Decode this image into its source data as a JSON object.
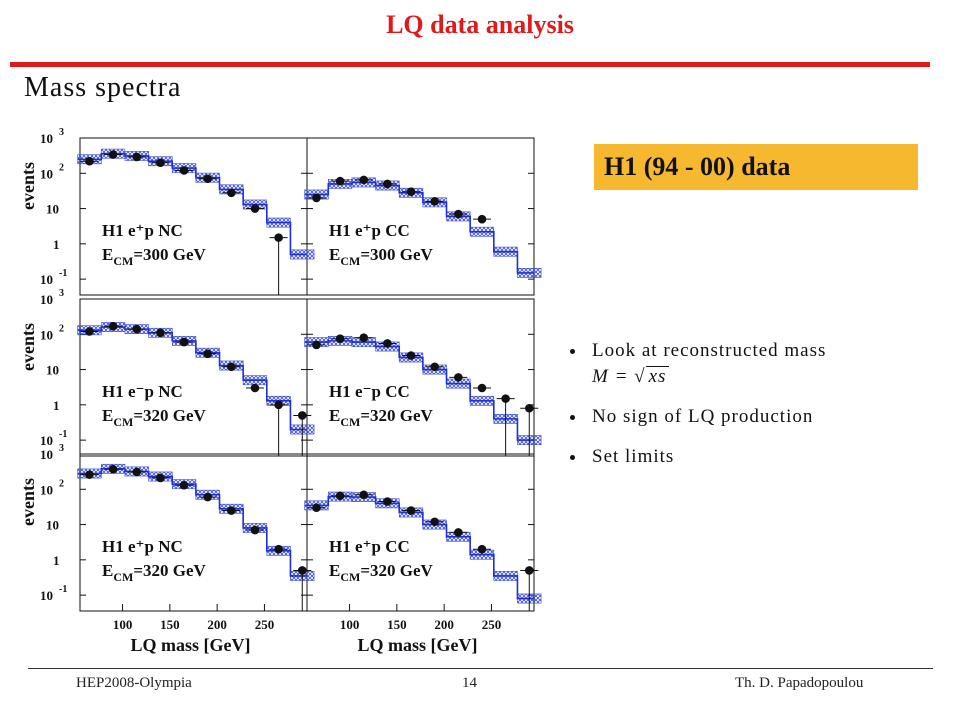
{
  "slide": {
    "title": "LQ data analysis",
    "section_heading": "Mass spectra",
    "data_box_label": "H1 (94 - 00)  data",
    "bullets": [
      "Look at reconstructed mass",
      "No sign of LQ production",
      "Set limits"
    ],
    "formula": {
      "lhs": "M =",
      "radicand": "xs"
    },
    "footer": {
      "left": "HEP2008-Olympia",
      "center": "14",
      "right": "Th. D. Papadopoulou"
    },
    "colors": {
      "title": "#e0191a",
      "box": "#f5b82e",
      "mc_line": "#1e2fd6"
    }
  },
  "chart_data": {
    "type": "histogram",
    "y_axis": {
      "label": "events",
      "scale": "log",
      "ticks": [
        "10^3",
        "10^2",
        "10",
        "1",
        "10^-1"
      ]
    },
    "x_axis": {
      "label": "LQ mass [GeV]",
      "range": [
        55,
        295
      ],
      "ticks": [
        100,
        150,
        200,
        250
      ]
    },
    "panels": [
      {
        "row": 0,
        "col": 0,
        "label": "H1 e⁺p NC",
        "energy": "E_CM=300 GeV",
        "x": [
          65,
          90,
          115,
          140,
          165,
          190,
          215,
          240,
          265,
          290
        ],
        "mc": [
          250,
          360,
          310,
          220,
          140,
          75,
          35,
          13,
          4,
          0.5
        ],
        "data": [
          220,
          340,
          290,
          200,
          120,
          70,
          28,
          10,
          1.5,
          0
        ]
      },
      {
        "row": 0,
        "col": 1,
        "label": "H1 e⁺p CC",
        "energy": "E_CM=300 GeV",
        "x": [
          65,
          90,
          115,
          140,
          165,
          190,
          215,
          240,
          265,
          290
        ],
        "mc": [
          25,
          50,
          55,
          45,
          28,
          15,
          6,
          2.2,
          0.6,
          0.15
        ],
        "data": [
          20,
          60,
          65,
          50,
          30,
          16,
          7,
          5,
          0,
          0
        ]
      },
      {
        "row": 1,
        "col": 0,
        "label": "H1 e⁻p NC",
        "energy": "E_CM=320 GeV",
        "x": [
          65,
          90,
          115,
          140,
          165,
          190,
          215,
          240,
          265,
          290
        ],
        "mc": [
          130,
          160,
          140,
          110,
          65,
          30,
          13,
          5,
          1.3,
          0.2
        ],
        "data": [
          120,
          170,
          140,
          110,
          60,
          28,
          12,
          3,
          1,
          0.5
        ]
      },
      {
        "row": 1,
        "col": 1,
        "label": "H1 e⁻p CC",
        "energy": "E_CM=320 GeV",
        "x": [
          65,
          90,
          115,
          140,
          165,
          190,
          215,
          240,
          265,
          290
        ],
        "mc": [
          60,
          65,
          60,
          45,
          22,
          10,
          4,
          1.3,
          0.4,
          0.1
        ],
        "data": [
          50,
          75,
          80,
          55,
          25,
          12,
          6,
          3,
          1.5,
          0.8
        ]
      },
      {
        "row": 2,
        "col": 0,
        "label": "H1 e⁺p NC",
        "energy": "E_CM=320 GeV",
        "x": [
          65,
          90,
          115,
          140,
          165,
          190,
          215,
          240,
          265,
          290
        ],
        "mc": [
          280,
          380,
          320,
          230,
          140,
          70,
          28,
          8,
          1.8,
          0.35
        ],
        "data": [
          260,
          370,
          310,
          210,
          130,
          60,
          25,
          7,
          2,
          0.5
        ]
      },
      {
        "row": 2,
        "col": 1,
        "label": "H1 e⁺p CC",
        "energy": "E_CM=320 GeV",
        "x": [
          65,
          90,
          115,
          140,
          165,
          190,
          215,
          240,
          265,
          290
        ],
        "mc": [
          35,
          62,
          60,
          40,
          22,
          10,
          4.5,
          1.4,
          0.35,
          0.08
        ],
        "data": [
          30,
          65,
          70,
          45,
          25,
          12,
          6,
          2,
          0,
          0.5
        ]
      }
    ]
  }
}
